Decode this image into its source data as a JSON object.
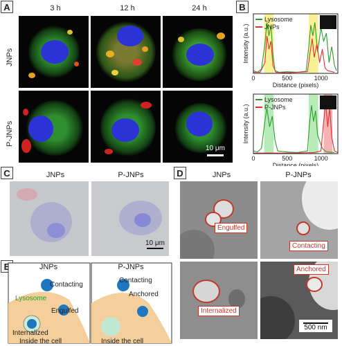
{
  "panels": {
    "a": "A",
    "b": "B",
    "c": "C",
    "d": "D",
    "e": "E"
  },
  "panelA": {
    "timepoints": [
      "3 h",
      "12 h",
      "24 h"
    ],
    "rows": [
      "JNPs",
      "P-JNPs"
    ],
    "scalebar": "10 μm"
  },
  "panelB": {
    "top": {
      "legend": [
        "Lysosome",
        "JNPs"
      ]
    },
    "bottom": {
      "legend": [
        "Lysosome",
        "P-JNPs"
      ]
    },
    "ylabel": "Intensity (a.u.)",
    "xlabel": "Distance (pixels)",
    "xticks": [
      "0",
      "500",
      "1000"
    ]
  },
  "panelC": {
    "titles": [
      "JNPs",
      "P-JNPs"
    ],
    "scalebar": "10 μm"
  },
  "panelD": {
    "titles": [
      "JNPs",
      "P-JNPs"
    ],
    "tags": [
      "Engulfed",
      "Contacting",
      "Internalized",
      "Anchored"
    ],
    "scalebar": "500 nm"
  },
  "panelE": {
    "titles": [
      "JNPs",
      "P-JNPs"
    ],
    "left": {
      "contacting": "Contacting",
      "lysosome": "Lysosome",
      "engulfed": "Engulfed",
      "internalized": "Internalized",
      "inside": "Inside the cell"
    },
    "right": {
      "contacting": "Contacting",
      "anchored": "Anchored",
      "inside": "Inside the cell"
    }
  },
  "chart_data": [
    {
      "type": "line",
      "title": "",
      "xlabel": "Distance (pixels)",
      "ylabel": "Intensity (a.u.)",
      "xlim": [
        0,
        1250
      ],
      "series": [
        {
          "name": "Lysosome",
          "color": "#2e9a2e",
          "x": [
            0,
            60,
            120,
            170,
            200,
            230,
            260,
            290,
            320,
            380,
            500,
            650,
            780,
            820,
            850,
            880,
            910,
            950,
            1000,
            1040,
            1080,
            1120,
            1160,
            1200,
            1230
          ],
          "y": [
            0.05,
            0.02,
            0.08,
            0.55,
            0.95,
            0.7,
            0.9,
            0.35,
            0.05,
            0.02,
            0.03,
            0.02,
            0.04,
            0.5,
            0.9,
            0.7,
            0.95,
            0.4,
            0.85,
            0.6,
            0.75,
            0.2,
            0.5,
            0.15,
            0.05
          ]
        },
        {
          "name": "JNPs",
          "color": "#e03030",
          "x": [
            0,
            100,
            170,
            200,
            230,
            260,
            290,
            330,
            500,
            800,
            840,
            870,
            900,
            940,
            980,
            1020,
            1060,
            1100,
            1200
          ],
          "y": [
            0.02,
            0.02,
            0.2,
            0.7,
            0.45,
            0.6,
            0.15,
            0.02,
            0.01,
            0.03,
            0.4,
            0.65,
            0.3,
            0.55,
            0.2,
            0.45,
            0.1,
            0.05,
            0.02
          ]
        }
      ],
      "highlight_bands": [
        {
          "x": [
            160,
            300
          ],
          "color": "#f5ec7a"
        },
        {
          "x": [
            820,
            960
          ],
          "color": "#f5ec7a"
        }
      ]
    },
    {
      "type": "line",
      "title": "",
      "xlabel": "Distance (pixels)",
      "ylabel": "Intensity (a.u.)",
      "xlim": [
        0,
        1250
      ],
      "series": [
        {
          "name": "Lysosome",
          "color": "#2e9a2e",
          "x": [
            0,
            60,
            120,
            170,
            200,
            240,
            280,
            320,
            360,
            500,
            650,
            800,
            830,
            860,
            890,
            920,
            950,
            990,
            1020,
            1060,
            1100,
            1200
          ],
          "y": [
            0.05,
            0.03,
            0.1,
            0.6,
            0.85,
            0.5,
            0.7,
            0.25,
            0.05,
            0.03,
            0.02,
            0.05,
            0.55,
            0.9,
            0.6,
            0.8,
            0.35,
            0.2,
            0.1,
            0.05,
            0.03,
            0.02
          ]
        },
        {
          "name": "P-JNPs",
          "color": "#e03030",
          "x": [
            0,
            300,
            600,
            900,
            1000,
            1040,
            1070,
            1100,
            1130,
            1160,
            1200,
            1250
          ],
          "y": [
            0.01,
            0.01,
            0.01,
            0.02,
            0.05,
            0.6,
            0.95,
            0.5,
            0.85,
            0.3,
            0.05,
            0.02
          ]
        }
      ],
      "highlight_bands": [
        {
          "x": [
            160,
            300
          ],
          "color": "#a8e6a8"
        },
        {
          "x": [
            820,
            960
          ],
          "color": "#a8e6a8"
        },
        {
          "x": [
            1040,
            1170
          ],
          "color": "#f5a0a0"
        }
      ]
    }
  ]
}
